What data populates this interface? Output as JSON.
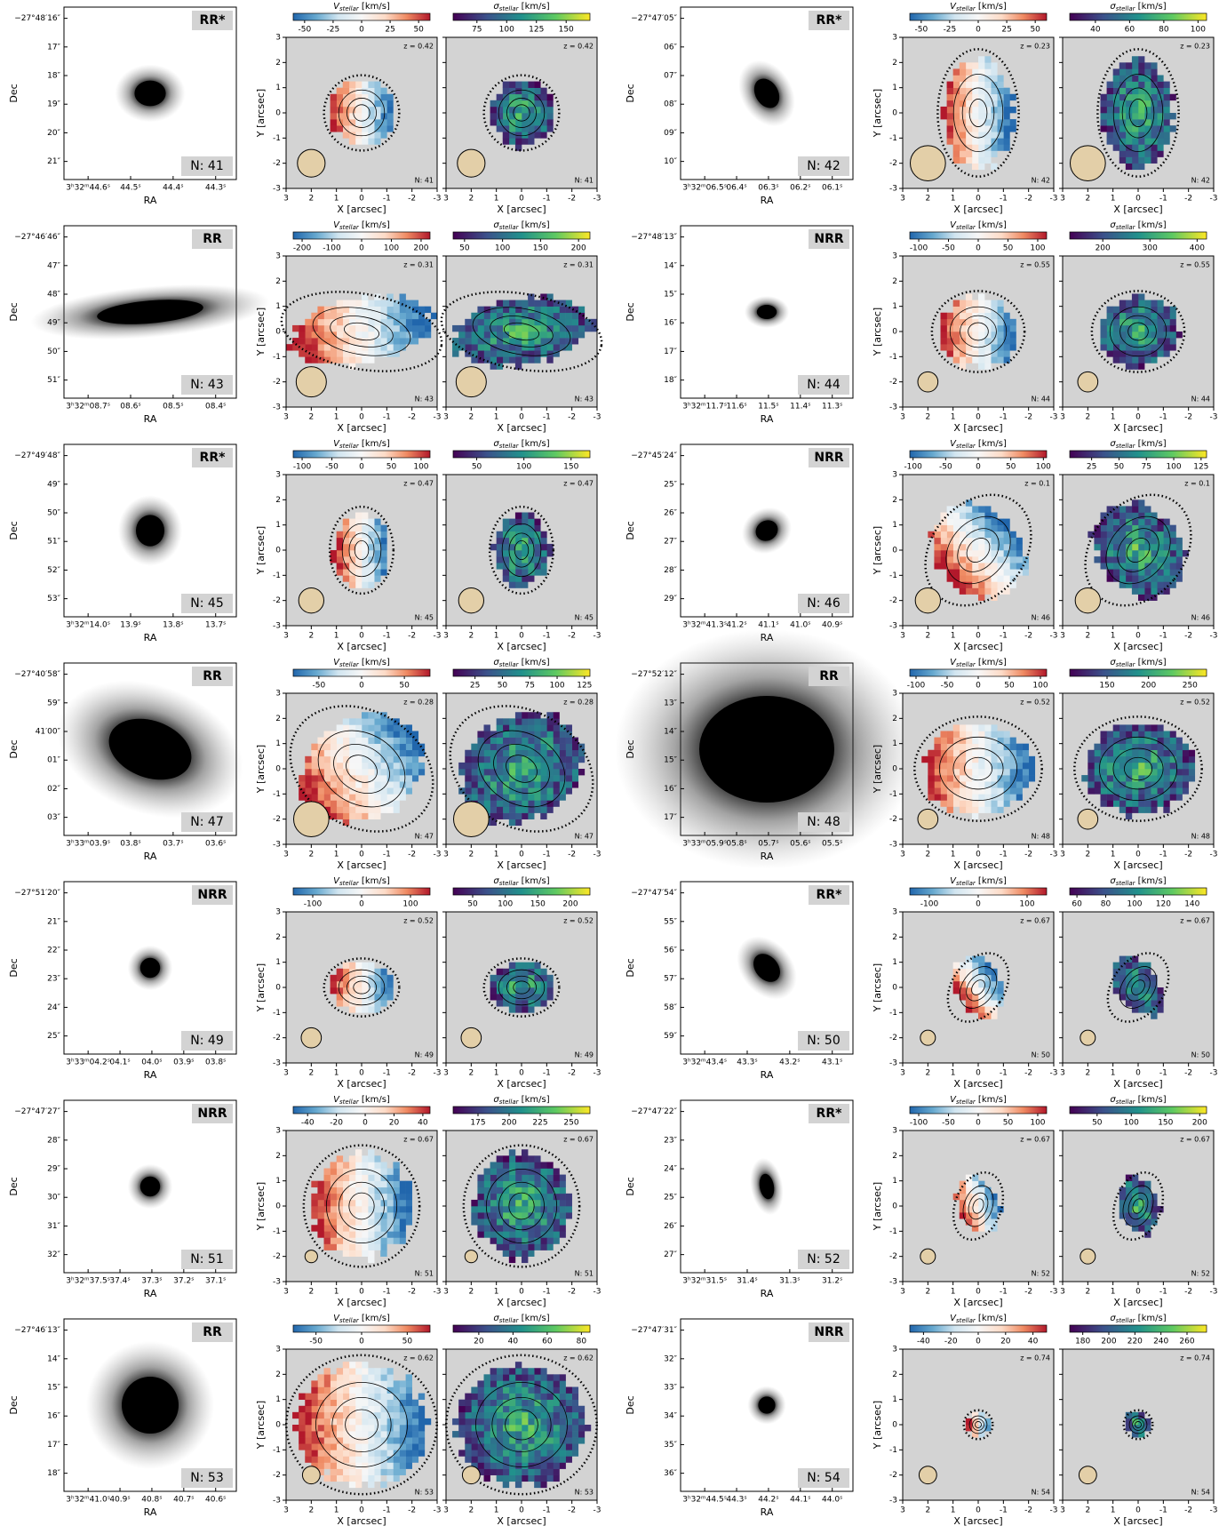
{
  "labels": {
    "dec": "Dec",
    "ra": "RA",
    "x_axis": "X [arcsec]",
    "y_axis": "Y [arcsec]",
    "v_symbol": "V",
    "sigma_symbol": "σ",
    "sub": "stellar",
    "unit": " [km/s]"
  },
  "map_xlim": [
    3,
    -3
  ],
  "map_ylim": [
    -3,
    3
  ],
  "map_ticks": [
    -3,
    -2,
    -1,
    0,
    1,
    2,
    3
  ],
  "panels": [
    {
      "class": "RR*",
      "n_label": "N: 41",
      "z_label": "z = 0.42",
      "dec_ticks": [
        "−27°48′16″",
        "17″",
        "18″",
        "19″",
        "20″",
        "21″"
      ],
      "ra_ticks": [
        "3ʰ32ᵐ44.6ˢ",
        "44.5ˢ",
        "44.4ˢ",
        "44.3ˢ"
      ],
      "v_lim": [
        -60,
        60
      ],
      "v_ticks": [
        -50,
        -25,
        0,
        25,
        50
      ],
      "sigma_lim": [
        55,
        170
      ],
      "sigma_ticks": [
        75,
        100,
        125,
        150
      ]
    },
    {
      "class": "RR*",
      "n_label": "N: 42",
      "z_label": "z = 0.23",
      "dec_ticks": [
        "−27°47′05″",
        "06″",
        "07″",
        "08″",
        "09″",
        "10″"
      ],
      "ra_ticks": [
        "3ʰ32ᵐ06.5ˢ",
        "06.4ˢ",
        "06.3ˢ",
        "06.2ˢ",
        "06.1ˢ"
      ],
      "v_lim": [
        -60,
        60
      ],
      "v_ticks": [
        -50,
        -25,
        0,
        25,
        50
      ],
      "sigma_lim": [
        25,
        105
      ],
      "sigma_ticks": [
        40,
        60,
        80,
        100
      ]
    },
    {
      "class": "RR",
      "n_label": "N: 43",
      "z_label": "z = 0.31",
      "dec_ticks": [
        "−27°46′46″",
        "47″",
        "48″",
        "49″",
        "50″",
        "51″"
      ],
      "ra_ticks": [
        "3ʰ32ᵐ08.7ˢ",
        "08.6ˢ",
        "08.5ˢ",
        "08.4ˢ"
      ],
      "v_lim": [
        -230,
        230
      ],
      "v_ticks": [
        -200,
        -100,
        0,
        100,
        200
      ],
      "sigma_lim": [
        35,
        215
      ],
      "sigma_ticks": [
        50,
        100,
        150,
        200
      ]
    },
    {
      "class": "NRR",
      "n_label": "N: 44",
      "z_label": "z = 0.55",
      "dec_ticks": [
        "−27°48′13″",
        "14″",
        "15″",
        "16″",
        "17″",
        "18″"
      ],
      "ra_ticks": [
        "3ʰ32ᵐ11.7ˢ",
        "11.6ˢ",
        "11.5ˢ",
        "11.4ˢ",
        "11.3ˢ"
      ],
      "v_lim": [
        -115,
        115
      ],
      "v_ticks": [
        -100,
        -50,
        0,
        50,
        100
      ],
      "sigma_lim": [
        130,
        420
      ],
      "sigma_ticks": [
        200,
        300,
        400
      ]
    },
    {
      "class": "RR*",
      "n_label": "N: 45",
      "z_label": "z = 0.47",
      "dec_ticks": [
        "−27°49′48″",
        "49″",
        "50″",
        "51″",
        "52″",
        "53″"
      ],
      "ra_ticks": [
        "3ʰ32ᵐ14.0ˢ",
        "13.9ˢ",
        "13.8ˢ",
        "13.7ˢ"
      ],
      "v_lim": [
        -115,
        115
      ],
      "v_ticks": [
        -100,
        -50,
        0,
        50,
        100
      ],
      "sigma_lim": [
        25,
        170
      ],
      "sigma_ticks": [
        50,
        100,
        150
      ]
    },
    {
      "class": "NRR",
      "n_label": "N: 46",
      "z_label": "z = 0.1",
      "dec_ticks": [
        "−27°45′24″",
        "25″",
        "26″",
        "27″",
        "28″",
        "29″"
      ],
      "ra_ticks": [
        "3ʰ32ᵐ41.3ˢ",
        "41.2ˢ",
        "41.1ˢ",
        "41.0ˢ",
        "40.9ˢ"
      ],
      "v_lim": [
        -105,
        105
      ],
      "v_ticks": [
        -100,
        -50,
        0,
        50,
        100
      ],
      "sigma_lim": [
        5,
        130
      ],
      "sigma_ticks": [
        25,
        50,
        75,
        100,
        125
      ]
    },
    {
      "class": "RR",
      "n_label": "N: 47",
      "z_label": "z = 0.28",
      "dec_ticks": [
        "−27°40′58″",
        "59″",
        "41′00″",
        "01″",
        "02″",
        "03″"
      ],
      "ra_ticks": [
        "3ʰ33ᵐ03.9ˢ",
        "03.8ˢ",
        "03.7ˢ",
        "03.6ˢ"
      ],
      "v_lim": [
        -80,
        80
      ],
      "v_ticks": [
        -50,
        0,
        50
      ],
      "sigma_lim": [
        5,
        130
      ],
      "sigma_ticks": [
        25,
        50,
        75,
        100,
        125
      ]
    },
    {
      "class": "RR",
      "n_label": "N: 48",
      "z_label": "z = 0.52",
      "dec_ticks": [
        "−27°52′12″",
        "13″",
        "14″",
        "15″",
        "16″",
        "17″"
      ],
      "ra_ticks": [
        "3ʰ33ᵐ05.9ˢ",
        "05.8ˢ",
        "05.7ˢ",
        "05.6ˢ",
        "05.5ˢ"
      ],
      "v_lim": [
        -110,
        110
      ],
      "v_ticks": [
        -100,
        -50,
        0,
        50,
        100
      ],
      "sigma_lim": [
        105,
        270
      ],
      "sigma_ticks": [
        150,
        200,
        250
      ]
    },
    {
      "class": "NRR",
      "n_label": "N: 49",
      "z_label": "z = 0.52",
      "dec_ticks": [
        "−27°51′20″",
        "21″",
        "22″",
        "23″",
        "24″",
        "25″"
      ],
      "ra_ticks": [
        "3ʰ33ᵐ04.2ˢ",
        "04.1ˢ",
        "04.0ˢ",
        "03.9ˢ",
        "03.8ˢ"
      ],
      "v_lim": [
        -140,
        140
      ],
      "v_ticks": [
        -100,
        0,
        100
      ],
      "sigma_lim": [
        20,
        230
      ],
      "sigma_ticks": [
        50,
        100,
        150,
        200
      ]
    },
    {
      "class": "RR*",
      "n_label": "N: 50",
      "z_label": "z = 0.67",
      "dec_ticks": [
        "−27°47′54″",
        "55″",
        "56″",
        "57″",
        "58″",
        "59″"
      ],
      "ra_ticks": [
        "3ʰ32ᵐ43.4ˢ",
        "43.3ˢ",
        "43.2ˢ",
        "43.1ˢ"
      ],
      "v_lim": [
        -140,
        140
      ],
      "v_ticks": [
        -100,
        0,
        100
      ],
      "sigma_lim": [
        55,
        150
      ],
      "sigma_ticks": [
        60,
        80,
        100,
        120,
        140
      ]
    },
    {
      "class": "NRR",
      "n_label": "N: 51",
      "z_label": "z = 0.67",
      "dec_ticks": [
        "−27°47′27″",
        "28″",
        "29″",
        "30″",
        "31″",
        "32″"
      ],
      "ra_ticks": [
        "3ʰ32ᵐ37.5ˢ",
        "37.4ˢ",
        "37.3ˢ",
        "37.2ˢ",
        "37.1ˢ"
      ],
      "v_lim": [
        -50,
        45
      ],
      "v_ticks": [
        -40,
        -20,
        0,
        20,
        40
      ],
      "sigma_lim": [
        155,
        265
      ],
      "sigma_ticks": [
        175,
        200,
        225,
        250
      ]
    },
    {
      "class": "RR*",
      "n_label": "N: 52",
      "z_label": "z = 0.67",
      "dec_ticks": [
        "−27°47′22″",
        "23″",
        "24″",
        "25″",
        "26″",
        "27″"
      ],
      "ra_ticks": [
        "3ʰ32ᵐ31.5ˢ",
        "31.4ˢ",
        "31.3ˢ",
        "31.2ˢ"
      ],
      "v_lim": [
        -115,
        115
      ],
      "v_ticks": [
        -100,
        -50,
        0,
        50,
        100
      ],
      "sigma_lim": [
        10,
        210
      ],
      "sigma_ticks": [
        50,
        100,
        150,
        200
      ]
    },
    {
      "class": "RR",
      "n_label": "N: 53",
      "z_label": "z = 0.62",
      "dec_ticks": [
        "−27°46′13″",
        "14″",
        "15″",
        "16″",
        "17″",
        "18″"
      ],
      "ra_ticks": [
        "3ʰ32ᵐ41.0ˢ",
        "40.9ˢ",
        "40.8ˢ",
        "40.7ˢ",
        "40.6ˢ"
      ],
      "v_lim": [
        -75,
        75
      ],
      "v_ticks": [
        -50,
        0,
        50
      ],
      "sigma_lim": [
        5,
        85
      ],
      "sigma_ticks": [
        20,
        40,
        60,
        80
      ]
    },
    {
      "class": "NRR",
      "n_label": "N: 54",
      "z_label": "z = 0.74",
      "dec_ticks": [
        "−27°47′31″",
        "32″",
        "33″",
        "34″",
        "35″",
        "36″"
      ],
      "ra_ticks": [
        "3ʰ32ᵐ44.5ˢ",
        "44.3ˢ",
        "44.2ˢ",
        "44.1ˢ",
        "44.0ˢ"
      ],
      "v_lim": [
        -50,
        50
      ],
      "v_ticks": [
        -40,
        -20,
        0,
        20,
        40
      ],
      "sigma_lim": [
        170,
        275
      ],
      "sigma_ticks": [
        180,
        200,
        220,
        240,
        260
      ]
    }
  ]
}
